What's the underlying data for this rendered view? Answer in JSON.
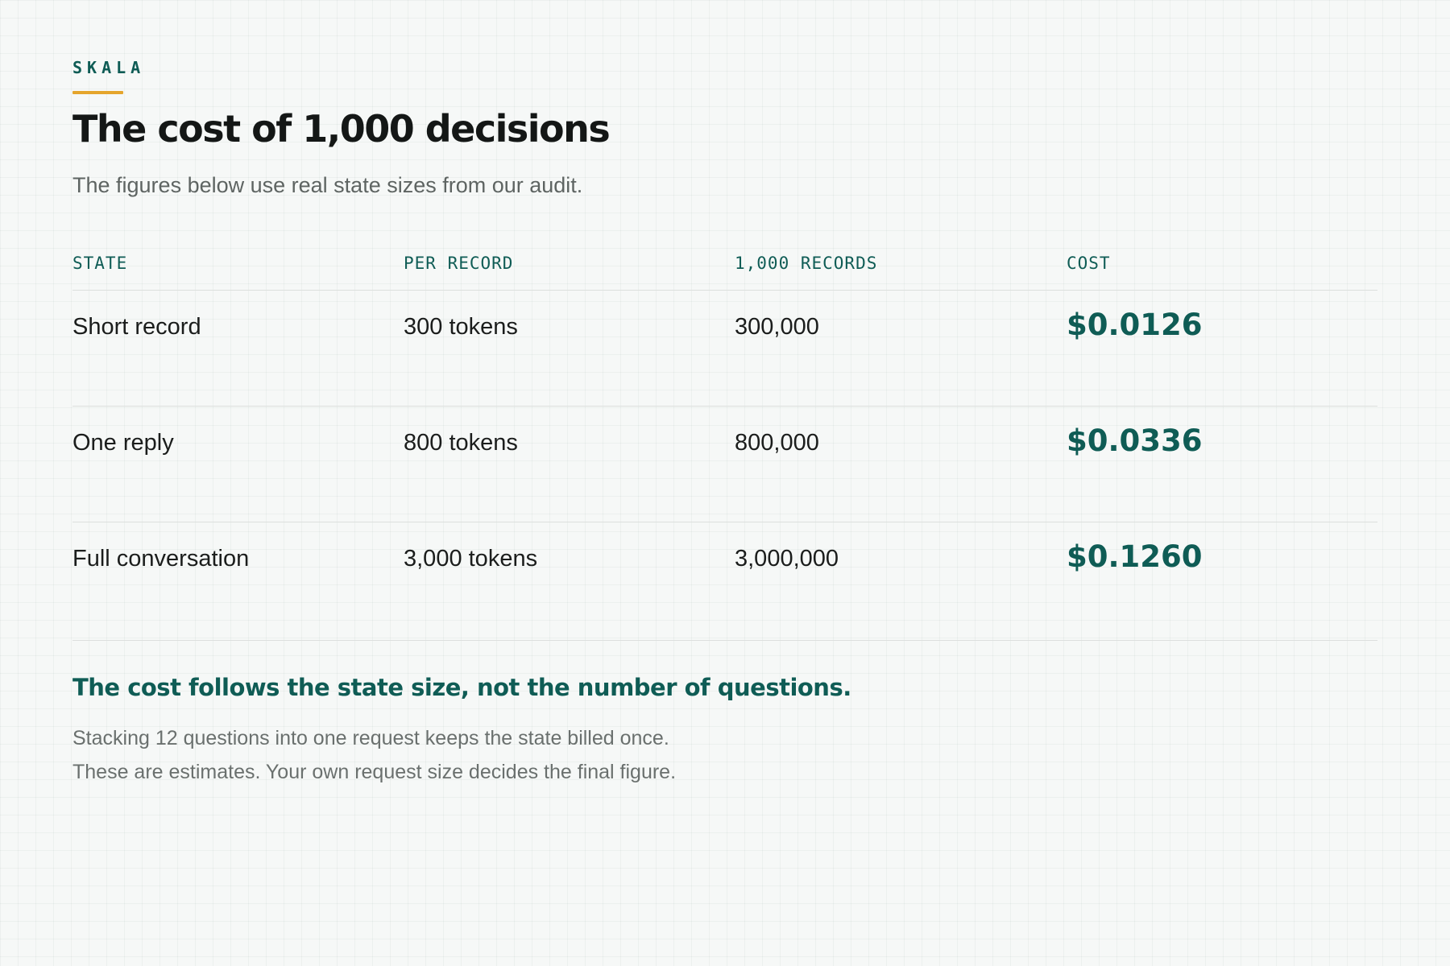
{
  "header": {
    "eyebrow": "SKALA",
    "title": "The cost of 1,000 decisions",
    "subtitle": "The figures below use real state sizes from our audit."
  },
  "table": {
    "columns": [
      "STATE",
      "PER RECORD",
      "1,000 RECORDS",
      "COST"
    ],
    "rows": [
      {
        "state": "Short record",
        "per_record": "300 tokens",
        "records_1000": "300,000",
        "cost": "$0.0126"
      },
      {
        "state": "One reply",
        "per_record": "800 tokens",
        "records_1000": "800,000",
        "cost": "$0.0336"
      },
      {
        "state": "Full conversation",
        "per_record": "3,000 tokens",
        "records_1000": "3,000,000",
        "cost": "$0.1260"
      }
    ]
  },
  "footer": {
    "takeaway": "The cost follows the state size, not the number of questions.",
    "notes": [
      "Stacking 12 questions into one request keeps the state billed once.",
      "These are estimates. Your own request size decides the final figure."
    ]
  },
  "colors": {
    "accent": "#0f5c55",
    "highlight": "#e5a52c",
    "background": "#f6f8f7"
  }
}
